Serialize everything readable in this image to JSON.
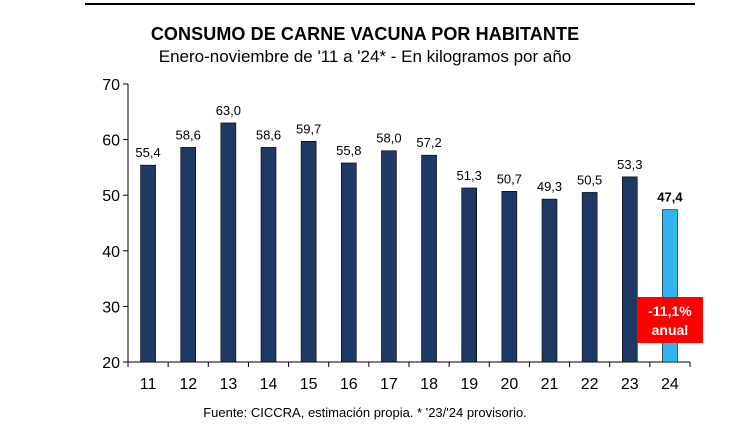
{
  "header": {
    "title": "CONSUMO DE CARNE VACUNA POR HABITANTE",
    "subtitle": "Enero-noviembre de '11 a '24* - En kilogramos por año"
  },
  "footer": {
    "source": "Fuente: CICCRA, estimación propia. * '23/'24 provisorio."
  },
  "annotation": {
    "line1": "-11,1%",
    "line2": "anual",
    "color": "#ff0000"
  },
  "colors": {
    "bar": "#1f3864",
    "highlight_bar": "#33b5f0"
  },
  "chart_data": {
    "type": "bar",
    "title": "CONSUMO DE CARNE VACUNA POR HABITANTE",
    "subtitle": "Enero-noviembre de '11 a '24* - En kilogramos por año",
    "categories": [
      "11",
      "12",
      "13",
      "14",
      "15",
      "16",
      "17",
      "18",
      "19",
      "20",
      "21",
      "22",
      "23",
      "24"
    ],
    "values": [
      55.4,
      58.6,
      63.0,
      58.6,
      59.7,
      55.8,
      58.0,
      57.2,
      51.3,
      50.7,
      49.3,
      50.5,
      53.3,
      47.4
    ],
    "value_labels": [
      "55,4",
      "58,6",
      "63,0",
      "58,6",
      "59,7",
      "55,8",
      "58,0",
      "57,2",
      "51,3",
      "50,7",
      "49,3",
      "50,5",
      "53,3",
      "47,4"
    ],
    "highlight_index": 13,
    "ylim": [
      20,
      70
    ],
    "yticks": [
      20,
      30,
      40,
      50,
      60,
      70
    ],
    "grid": false,
    "legend": "none"
  }
}
